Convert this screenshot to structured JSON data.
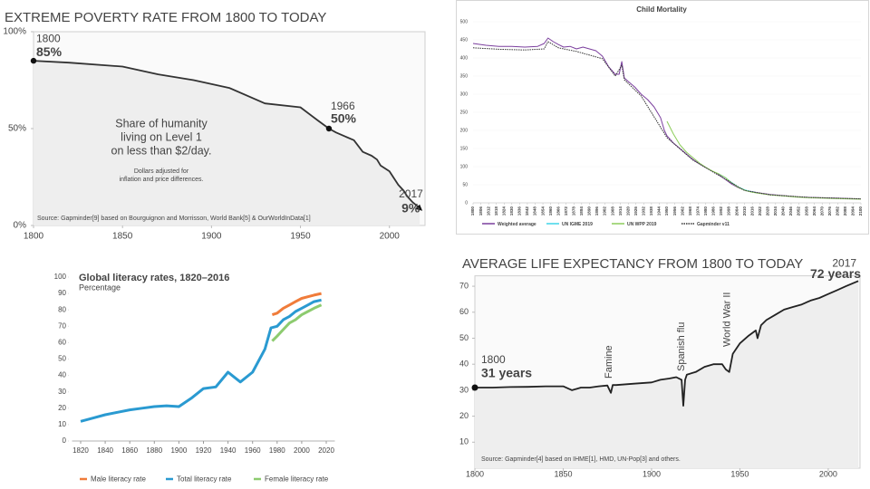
{
  "chart_data": [
    {
      "type": "area",
      "title": "EXTREME POVERTY RATE FROM 1800 TO TODAY",
      "x": [
        1800,
        1820,
        1850,
        1870,
        1890,
        1910,
        1930,
        1950,
        1960,
        1966,
        1970,
        1975,
        1980,
        1985,
        1990,
        1993,
        1995,
        2000,
        2005,
        2008,
        2010,
        2013,
        2017
      ],
      "values": [
        85,
        84,
        82,
        78,
        75,
        71,
        63,
        61,
        54,
        50,
        48,
        46,
        44,
        38,
        36,
        34,
        31,
        28,
        21,
        18,
        15,
        12,
        9
      ],
      "color": "#333333",
      "fill": "#eeeeee",
      "xlim": [
        1800,
        2020
      ],
      "ylim": [
        0,
        100
      ],
      "xticks": [
        1800,
        1850,
        1900,
        1950,
        2000
      ],
      "yticks": [
        {
          "value": 0,
          "label": "0%"
        },
        {
          "value": 50,
          "label": "50%"
        },
        {
          "value": 100,
          "label": "100%"
        }
      ],
      "annotations": [
        {
          "x": 1800,
          "y": 85,
          "label": "85%"
        },
        {
          "x": 1966,
          "y": 50,
          "label": "50%"
        },
        {
          "x": 2017,
          "y": 9,
          "label": "9%"
        }
      ],
      "text": [
        "Share of humanity",
        "living on Level 1",
        "on less than $2/day."
      ],
      "note": [
        "Dollars adjusted for",
        "inflation and price differences."
      ],
      "source": "Source: Gapminder[9] based on Bourguignon and Morrisson, World Bank[5] & OurWorldInData[1]"
    },
    {
      "type": "line",
      "title": "Child Mortality",
      "xlim": [
        1800,
        2100
      ],
      "ylim": [
        0,
        500
      ],
      "xticks": [
        1800,
        1806,
        1812,
        1818,
        1824,
        1830,
        1836,
        1842,
        1848,
        1854,
        1860,
        1866,
        1872,
        1878,
        1884,
        1890,
        1896,
        1902,
        1908,
        1914,
        1920,
        1926,
        1932,
        1938,
        1944,
        1950,
        1956,
        1962,
        1968,
        1974,
        1980,
        1986,
        1992,
        1998,
        2004,
        2010,
        2016,
        2022,
        2028,
        2034,
        2040,
        2046,
        2052,
        2058,
        2064,
        2070,
        2076,
        2082,
        2088,
        2094,
        2100
      ],
      "yticks": [
        0,
        50,
        100,
        150,
        200,
        250,
        300,
        350,
        400,
        450,
        500
      ],
      "series": [
        {
          "name": "Weighted average",
          "color": "#7b3f9e",
          "dashed": false,
          "x": [
            1800,
            1810,
            1820,
            1830,
            1840,
            1850,
            1855,
            1858,
            1862,
            1866,
            1870,
            1875,
            1880,
            1885,
            1890,
            1895,
            1900,
            1905,
            1910,
            1913,
            1915,
            1917,
            1920,
            1925,
            1930,
            1935,
            1940,
            1945,
            1948,
            1950,
            1955,
            1960,
            1965,
            1970,
            1975,
            1980,
            1985,
            1990,
            1995,
            2000,
            2005,
            2010,
            2020,
            2030,
            2040,
            2050,
            2060,
            2070,
            2080,
            2090,
            2100
          ],
          "values": [
            440,
            435,
            432,
            432,
            430,
            432,
            440,
            455,
            445,
            437,
            430,
            432,
            425,
            430,
            425,
            420,
            405,
            375,
            355,
            355,
            390,
            345,
            335,
            320,
            300,
            285,
            265,
            235,
            200,
            185,
            165,
            150,
            135,
            120,
            108,
            97,
            88,
            78,
            65,
            52,
            42,
            35,
            28,
            23,
            20,
            17,
            15,
            14,
            13,
            12,
            11
          ]
        },
        {
          "name": "UN IGME 2019",
          "color": "#3fd4e8",
          "dashed": false,
          "x": [
            1990,
            1995,
            2000,
            2005,
            2010,
            2015,
            2019
          ],
          "values": [
            80,
            70,
            56,
            44,
            36,
            31,
            28
          ]
        },
        {
          "name": "UN WPP 2019",
          "color": "#8ccc5a",
          "dashed": false,
          "x": [
            1950,
            1955,
            1960,
            1965,
            1970,
            1975,
            1980,
            1985,
            1990,
            1995,
            2000,
            2005,
            2010,
            2015,
            2020,
            2030,
            2040,
            2050,
            2060,
            2070,
            2080,
            2090,
            2100
          ],
          "values": [
            225,
            190,
            160,
            140,
            125,
            110,
            98,
            88,
            80,
            70,
            55,
            43,
            35,
            30,
            27,
            22,
            19,
            16,
            14,
            13,
            12,
            11,
            10
          ]
        },
        {
          "name": "Gapminder v11",
          "color": "#333333",
          "dashed": true,
          "x": [
            1800,
            1820,
            1840,
            1855,
            1858,
            1866,
            1880,
            1900,
            1910,
            1915,
            1917,
            1930,
            1950,
            1970,
            1990,
            2010,
            2030,
            2060,
            2100
          ],
          "values": [
            428,
            424,
            422,
            425,
            445,
            428,
            418,
            398,
            350,
            380,
            340,
            295,
            180,
            118,
            76,
            34,
            22,
            15,
            11
          ]
        }
      ]
    },
    {
      "type": "line",
      "title": "Global literacy rates, 1820–2016",
      "subtitle": "Percentage",
      "xlim": [
        1813,
        2027
      ],
      "ylim": [
        0,
        100
      ],
      "xticks": [
        1820,
        1840,
        1860,
        1880,
        1900,
        1920,
        1940,
        1960,
        1980,
        2000,
        2020
      ],
      "yticks": [
        0,
        10,
        20,
        30,
        40,
        50,
        60,
        70,
        80,
        90,
        100
      ],
      "series": [
        {
          "name": "Male literacy rate",
          "color": "#f07c3a",
          "x": [
            1976,
            1980,
            1985,
            1990,
            1995,
            2000,
            2005,
            2010,
            2016
          ],
          "values": [
            77,
            78,
            81,
            83,
            85,
            87,
            88,
            89,
            90
          ]
        },
        {
          "name": "Total literacy rate",
          "color": "#2a9ad1",
          "x": [
            1820,
            1830,
            1840,
            1850,
            1860,
            1870,
            1880,
            1890,
            1900,
            1910,
            1920,
            1930,
            1940,
            1950,
            1960,
            1970,
            1975,
            1980,
            1985,
            1990,
            1995,
            2000,
            2005,
            2010,
            2016
          ],
          "values": [
            12,
            14,
            16,
            17.5,
            19,
            20,
            21,
            21.5,
            21,
            26,
            32,
            33,
            42,
            36,
            42,
            56,
            69,
            70,
            74,
            76,
            79,
            81,
            83,
            85,
            86
          ]
        },
        {
          "name": "Female literacy rate",
          "color": "#8dcb6f",
          "x": [
            1976,
            1980,
            1985,
            1990,
            1995,
            2000,
            2005,
            2010,
            2016
          ],
          "values": [
            61,
            64,
            68,
            72,
            74,
            77,
            79,
            81,
            83
          ]
        }
      ]
    },
    {
      "type": "area",
      "title": "AVERAGE LIFE EXPECTANCY FROM 1800 TO TODAY",
      "x": [
        1800,
        1810,
        1820,
        1830,
        1840,
        1850,
        1855,
        1860,
        1865,
        1870,
        1875,
        1877,
        1878,
        1880,
        1890,
        1900,
        1905,
        1910,
        1914,
        1917,
        1918,
        1919,
        1920,
        1925,
        1930,
        1935,
        1940,
        1942,
        1944,
        1946,
        1950,
        1955,
        1959,
        1960,
        1962,
        1965,
        1970,
        1975,
        1980,
        1985,
        1990,
        1995,
        2000,
        2005,
        2010,
        2017
      ],
      "values": [
        31,
        31,
        31.2,
        31.3,
        31.5,
        31.5,
        30,
        31,
        31,
        31.5,
        31.8,
        29,
        32,
        32,
        32.5,
        33,
        34,
        34.5,
        35,
        34,
        24,
        34,
        36,
        37,
        39,
        40,
        40,
        38,
        37,
        44,
        48,
        51,
        53,
        50,
        55,
        57,
        59,
        61,
        62,
        63,
        64.5,
        65.5,
        67,
        68.5,
        70,
        72
      ],
      "color": "#222222",
      "fill": "#eeeeee",
      "xlim": [
        1800,
        2018
      ],
      "ylim": [
        0,
        74
      ],
      "xticks": [
        1800,
        1850,
        1900,
        1950,
        2000
      ],
      "yticks": [
        10,
        20,
        30,
        40,
        50,
        60,
        70
      ],
      "annotations": [
        {
          "x": 1800,
          "y": 31,
          "label": "31 years"
        },
        {
          "x": 2017,
          "y": 72,
          "label": "72 years"
        }
      ],
      "events": [
        {
          "x": 1877,
          "label": "Famine"
        },
        {
          "x": 1918,
          "label": "Spanish flu"
        },
        {
          "x": 1944,
          "label": "World War II"
        }
      ],
      "source": "Source: Gapminder[4] based on IHME[1], HMD, UN-Pop[3] and others."
    }
  ]
}
